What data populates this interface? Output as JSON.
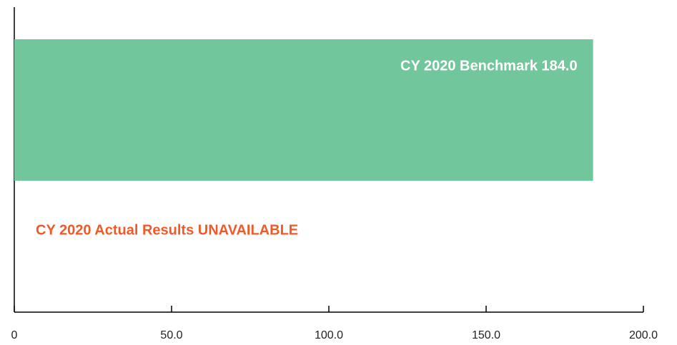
{
  "chart_data": {
    "type": "hbar",
    "categories": [
      null,
      null
    ],
    "values": [
      184.0,
      null
    ],
    "value_labels": [
      "CY 2020 Benchmark 184.0",
      "CY 2020 Actual Results UNAVAILABLE"
    ],
    "value_label_colors": [
      "#ffffff",
      "#f05a28"
    ],
    "color": "#72c69c",
    "xlim": [
      0,
      200
    ],
    "xticks": [
      0,
      {
        "value": 50,
        "label": "50.0"
      },
      {
        "value": 100,
        "label": "100.0"
      },
      {
        "value": 150,
        "label": "150.0"
      },
      {
        "value": 200,
        "label": "200.0"
      }
    ],
    "grid": false
  }
}
